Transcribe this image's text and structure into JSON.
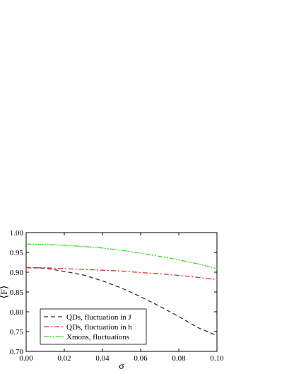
{
  "chart_data": {
    "type": "line",
    "xlabel": "σ",
    "ylabel": "⟨F⟩",
    "xlim": [
      0.0,
      0.1
    ],
    "ylim": [
      0.7,
      1.0
    ],
    "xticks": [
      "0.00",
      "0.02",
      "0.04",
      "0.06",
      "0.08",
      "0.10"
    ],
    "yticks": [
      "0.70",
      "0.75",
      "0.80",
      "0.85",
      "0.90",
      "0.95",
      "1.00"
    ],
    "grid": false,
    "legend_position": "bottom-left",
    "series": [
      {
        "name": "QDs, fluctuation in J",
        "color": "#333333",
        "style": "dash",
        "x": [
          0.0,
          0.01,
          0.02,
          0.03,
          0.04,
          0.05,
          0.06,
          0.07,
          0.08,
          0.09,
          0.1
        ],
        "y": [
          0.912,
          0.91,
          0.902,
          0.893,
          0.878,
          0.86,
          0.838,
          0.814,
          0.788,
          0.76,
          0.74
        ]
      },
      {
        "name": "QDs, fluctuation in h",
        "color": "#e0302a",
        "style": "dashdot",
        "x": [
          0.0,
          0.01,
          0.02,
          0.03,
          0.04,
          0.05,
          0.06,
          0.07,
          0.08,
          0.09,
          0.1
        ],
        "y": [
          0.911,
          0.911,
          0.909,
          0.907,
          0.905,
          0.903,
          0.899,
          0.896,
          0.892,
          0.887,
          0.881
        ]
      },
      {
        "name": "Xmons, fluctuations",
        "color": "#33dd22",
        "style": "dashdotdot",
        "x": [
          0.0,
          0.01,
          0.02,
          0.03,
          0.04,
          0.05,
          0.06,
          0.07,
          0.08,
          0.09,
          0.1
        ],
        "y": [
          0.971,
          0.97,
          0.968,
          0.965,
          0.961,
          0.955,
          0.948,
          0.94,
          0.931,
          0.921,
          0.909
        ]
      }
    ]
  }
}
